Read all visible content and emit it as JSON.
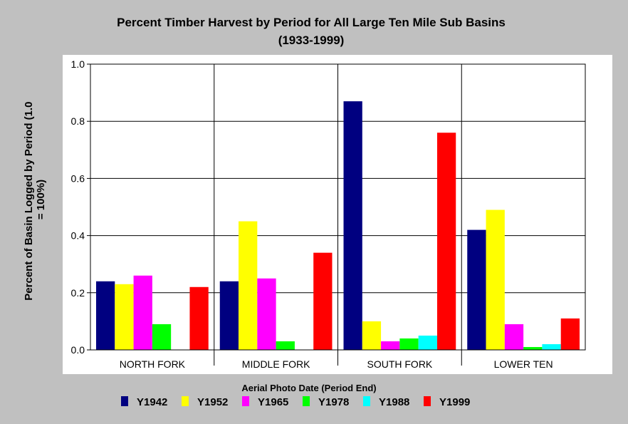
{
  "chart_data": {
    "type": "bar",
    "title": "Percent Timber Harvest by Period for All Large Ten Mile Sub Basins",
    "subtitle": "(1933-1999)",
    "ylabel": "Percent of Basin Logged by Period (1.0 = 100%)",
    "xlabel": "Aerial Photo Date (Period End)",
    "categories": [
      "NORTH FORK",
      "MIDDLE FORK",
      "SOUTH FORK",
      "LOWER TEN"
    ],
    "ylim": [
      0,
      1.0
    ],
    "yticks": [
      "0.0",
      "0.2",
      "0.4",
      "0.6",
      "0.8",
      "1.0"
    ],
    "grid": true,
    "legend_position": "bottom",
    "series": [
      {
        "name": "Y1942",
        "color": "#000080",
        "values": [
          0.24,
          0.24,
          0.87,
          0.42
        ]
      },
      {
        "name": "Y1952",
        "color": "#ffff00",
        "values": [
          0.23,
          0.45,
          0.1,
          0.49
        ]
      },
      {
        "name": "Y1965",
        "color": "#ff00ff",
        "values": [
          0.26,
          0.25,
          0.03,
          0.09
        ]
      },
      {
        "name": "Y1978",
        "color": "#00ff00",
        "values": [
          0.09,
          0.03,
          0.04,
          0.01
        ]
      },
      {
        "name": "Y1988",
        "color": "#00ffff",
        "values": [
          0.0,
          0.0,
          0.05,
          0.02
        ]
      },
      {
        "name": "Y1999",
        "color": "#ff0000",
        "values": [
          0.22,
          0.34,
          0.76,
          0.11
        ]
      }
    ]
  }
}
